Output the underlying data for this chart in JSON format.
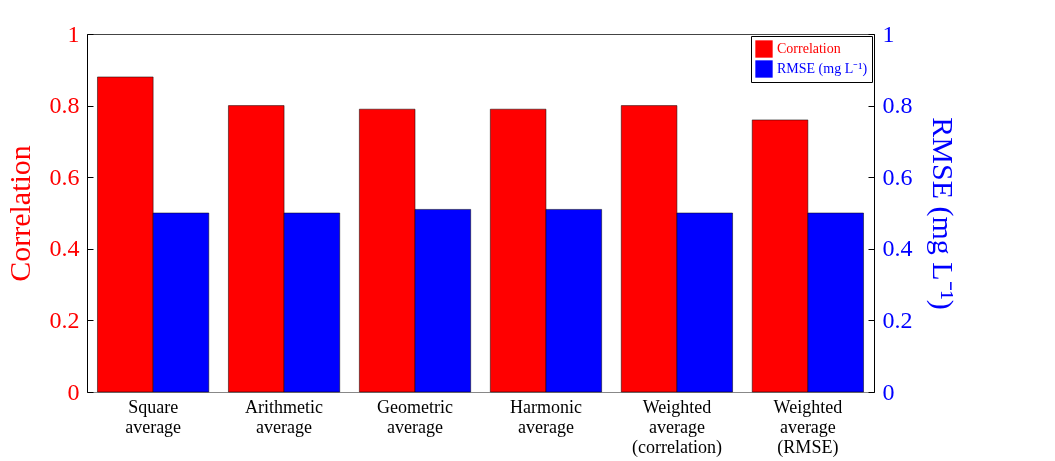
{
  "chart_data": {
    "type": "bar",
    "categories": [
      "Square average",
      "Arithmetic average",
      "Geometric average",
      "Harmonic average",
      "Weighted average (correlation)",
      "Weighted average (RMSE)"
    ],
    "ylabel": "Correlation",
    "y2label": "RMSE (mg L⁻¹)",
    "series": [
      {
        "name": "Correlation",
        "color": "#ff0000",
        "values": [
          0.88,
          0.8,
          0.79,
          0.79,
          0.8,
          0.76
        ]
      },
      {
        "name": "RMSE (mg L⁻¹)",
        "color": "#0000ff",
        "axis": "y2",
        "values": [
          0.5,
          0.5,
          0.51,
          0.51,
          0.5,
          0.5
        ]
      }
    ],
    "ylim": [
      0,
      1
    ],
    "yticks": [
      0,
      0.2,
      0.4,
      0.6,
      0.8,
      1
    ],
    "y2lim": [
      0,
      1
    ],
    "y2ticks": [
      0,
      0.2,
      0.4,
      0.6,
      0.8,
      1
    ],
    "legend": "top right",
    "grid": false
  }
}
